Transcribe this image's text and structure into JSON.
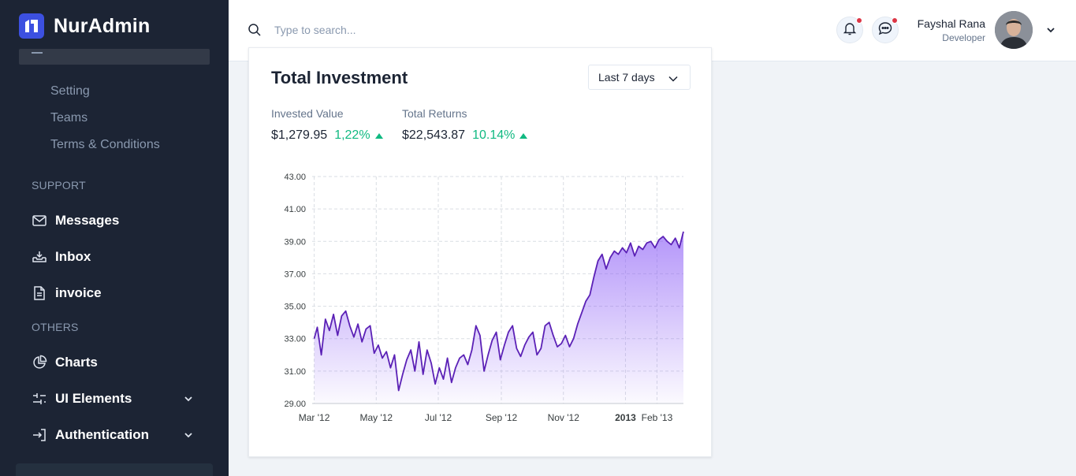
{
  "app": {
    "name": "NurAdmin"
  },
  "sidebar": {
    "sub_items": [
      "Setting",
      "Teams",
      "Terms & Conditions"
    ],
    "sections": {
      "support": "SUPPORT",
      "others": "OTHERS"
    },
    "support_items": [
      {
        "label": "Messages",
        "icon": "mail-icon"
      },
      {
        "label": "Inbox",
        "icon": "inbox-icon"
      },
      {
        "label": "invoice",
        "icon": "invoice-icon"
      }
    ],
    "other_items": [
      {
        "label": "Charts",
        "icon": "pie-chart-icon"
      },
      {
        "label": "UI Elements",
        "icon": "sliders-icon",
        "expandable": true
      },
      {
        "label": "Authentication",
        "icon": "sign-in-icon",
        "expandable": true
      }
    ]
  },
  "header": {
    "search_placeholder": "Type to search...",
    "user": {
      "name": "Fayshal Rana",
      "role": "Developer"
    }
  },
  "card": {
    "title": "Total Investment",
    "period": "Last 7 days",
    "stats": [
      {
        "label": "Invested Value",
        "value": "$1,279.95",
        "change": "1,22%"
      },
      {
        "label": "Total Returns",
        "value": "$22,543.87",
        "change": "10.14%"
      }
    ]
  },
  "colors": {
    "sidebar_bg": "#1c2434",
    "accent": "#3c50e0",
    "line": "#5b21b6",
    "positive": "#10b981",
    "badge": "#dc3545"
  },
  "chart_data": {
    "type": "area",
    "title": "",
    "xlabel": "",
    "ylabel": "",
    "ylim": [
      29,
      43
    ],
    "yticks": [
      "29.00",
      "31.00",
      "33.00",
      "35.00",
      "37.00",
      "39.00",
      "41.00",
      "43.00"
    ],
    "xticks": [
      "Mar '12",
      "May '12",
      "Jul '12",
      "Sep '12",
      "Nov '12",
      "2013",
      "Feb '13"
    ],
    "xtick_dates": [
      "2012-03-01",
      "2012-05-01",
      "2012-07-01",
      "2012-09-01",
      "2012-11-01",
      "2013-01-01",
      "2013-02-01"
    ],
    "grid": true,
    "series": [
      {
        "x": [
          "2012-03-01",
          "2012-03-04",
          "2012-03-08",
          "2012-03-12",
          "2012-03-16",
          "2012-03-20",
          "2012-03-24",
          "2012-03-28",
          "2012-04-01",
          "2012-04-05",
          "2012-04-09",
          "2012-04-13",
          "2012-04-17",
          "2012-04-21",
          "2012-04-25",
          "2012-04-29",
          "2012-05-03",
          "2012-05-07",
          "2012-05-11",
          "2012-05-15",
          "2012-05-19",
          "2012-05-23",
          "2012-05-27",
          "2012-05-31",
          "2012-06-04",
          "2012-06-08",
          "2012-06-12",
          "2012-06-16",
          "2012-06-20",
          "2012-06-24",
          "2012-06-28",
          "2012-07-02",
          "2012-07-06",
          "2012-07-10",
          "2012-07-14",
          "2012-07-18",
          "2012-07-22",
          "2012-07-26",
          "2012-07-30",
          "2012-08-03",
          "2012-08-07",
          "2012-08-11",
          "2012-08-15",
          "2012-08-19",
          "2012-08-23",
          "2012-08-27",
          "2012-08-31",
          "2012-09-04",
          "2012-09-08",
          "2012-09-12",
          "2012-09-16",
          "2012-09-20",
          "2012-09-24",
          "2012-09-28",
          "2012-10-02",
          "2012-10-06",
          "2012-10-10",
          "2012-10-14",
          "2012-10-18",
          "2012-10-22",
          "2012-10-26",
          "2012-10-30",
          "2012-11-03",
          "2012-11-07",
          "2012-11-11",
          "2012-11-15",
          "2012-11-19",
          "2012-11-23",
          "2012-11-27",
          "2012-12-01",
          "2012-12-05",
          "2012-12-09",
          "2012-12-13",
          "2012-12-17",
          "2012-12-21",
          "2012-12-25",
          "2012-12-29",
          "2013-01-02",
          "2013-01-06",
          "2013-01-10",
          "2013-01-14",
          "2013-01-18",
          "2013-01-22",
          "2013-01-26",
          "2013-01-30",
          "2013-02-03",
          "2013-02-07",
          "2013-02-11",
          "2013-02-15",
          "2013-02-19",
          "2013-02-23",
          "2013-02-27"
        ],
        "values": [
          33.0,
          33.7,
          32.0,
          34.2,
          33.5,
          34.5,
          33.2,
          34.4,
          34.7,
          33.8,
          33.1,
          33.9,
          32.8,
          33.6,
          33.8,
          32.1,
          32.6,
          31.8,
          32.2,
          31.2,
          32.0,
          29.8,
          30.8,
          31.7,
          32.3,
          31.0,
          32.8,
          30.8,
          32.3,
          31.5,
          30.2,
          31.2,
          30.5,
          31.8,
          30.3,
          31.2,
          31.8,
          32.0,
          31.4,
          32.3,
          33.8,
          33.2,
          31.0,
          32.0,
          32.9,
          33.4,
          31.7,
          32.6,
          33.4,
          33.8,
          32.4,
          31.9,
          32.6,
          33.1,
          33.4,
          32.0,
          32.4,
          33.8,
          34.0,
          33.2,
          32.5,
          32.7,
          33.2,
          32.5,
          33.0,
          33.9,
          34.6,
          35.3,
          35.7,
          36.8,
          37.8,
          38.2,
          37.3,
          38.0,
          38.4,
          38.2,
          38.6,
          38.3,
          38.9,
          38.1,
          38.7,
          38.5,
          38.9,
          39.0,
          38.6,
          39.1,
          39.3,
          39.0,
          38.8,
          39.2,
          38.6,
          39.6
        ]
      }
    ]
  }
}
